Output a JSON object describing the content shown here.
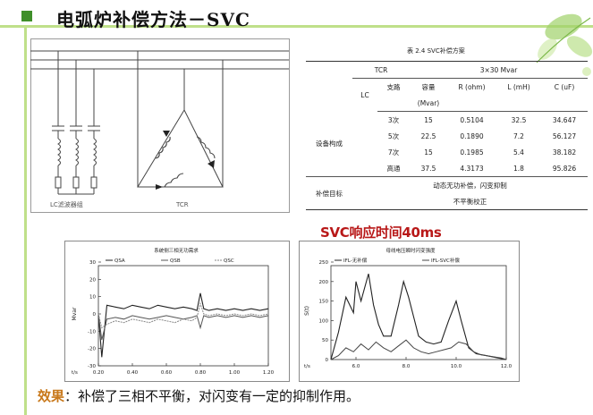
{
  "slide": {
    "title": "电弧炉补偿方法－SVC",
    "headline": "SVC响应时间40ms",
    "effect_label": "效果",
    "effect_text": "：补偿了三相不平衡，对闪变有一定的抑制作用。",
    "accent_color": "#bfe08a",
    "headline_color": "#b81818"
  },
  "diagram": {
    "lc_label": "LC滤波器组",
    "tcr_label": "TCR"
  },
  "table": {
    "caption": "表 2.4 SVC补偿方案",
    "tcr_label": "TCR",
    "tcr_value": "3×30 Mvar",
    "lc_label": "LC",
    "headers": [
      "支路",
      "容量",
      "R (ohm)",
      "L (mH)",
      "C (uF)"
    ],
    "capacity_unit": "(Mvar)",
    "group_label": "设备构成",
    "rows": [
      [
        "3次",
        "15",
        "0.5104",
        "32.5",
        "34.647"
      ],
      [
        "5次",
        "22.5",
        "0.1890",
        "7.2",
        "56.127"
      ],
      [
        "7次",
        "15",
        "0.1985",
        "5.4",
        "38.182"
      ],
      [
        "高通",
        "37.5",
        "4.3173",
        "1.8",
        "95.826"
      ]
    ],
    "target_label": "补偿目标",
    "targets": [
      "动态无功补偿，闪变抑制",
      "不平衡校正"
    ]
  },
  "chart_data": [
    {
      "type": "line",
      "title": "系统侧三相无功需求",
      "ylabel": "Mvar",
      "xlabel": "t/s",
      "xlim": [
        0.2,
        1.2
      ],
      "ylim": [
        -30,
        30
      ],
      "xticks": [
        "0.20",
        "0.40",
        "0.60",
        "0.80",
        "1.00",
        "1.20"
      ],
      "yticks": [
        "30",
        "20",
        "10",
        "0",
        "-10",
        "-20",
        "-30"
      ],
      "series": [
        {
          "name": "QSA",
          "x": [
            0.2,
            0.22,
            0.25,
            0.3,
            0.35,
            0.4,
            0.45,
            0.5,
            0.55,
            0.6,
            0.65,
            0.7,
            0.75,
            0.78,
            0.8,
            0.82,
            0.85,
            0.9,
            0.95,
            1.0,
            1.05,
            1.1,
            1.15,
            1.2
          ],
          "y": [
            0,
            -25,
            5,
            4,
            3,
            5,
            4,
            3,
            5,
            4,
            3,
            4,
            3,
            2,
            12,
            3,
            2,
            3,
            2,
            3,
            2,
            3,
            2,
            3
          ]
        },
        {
          "name": "QSB",
          "x": [
            0.2,
            0.22,
            0.25,
            0.3,
            0.35,
            0.4,
            0.45,
            0.5,
            0.55,
            0.6,
            0.65,
            0.7,
            0.75,
            0.78,
            0.8,
            0.82,
            0.85,
            0.9,
            0.95,
            1.0,
            1.05,
            1.1,
            1.15,
            1.2
          ],
          "y": [
            0,
            -15,
            -3,
            -2,
            -3,
            -1,
            -2,
            -3,
            -2,
            -1,
            -2,
            -3,
            -2,
            -1,
            -8,
            -1,
            -2,
            -1,
            -2,
            -1,
            -2,
            -1,
            -2,
            -1
          ]
        },
        {
          "name": "QSC",
          "x": [
            0.2,
            0.22,
            0.25,
            0.3,
            0.35,
            0.4,
            0.45,
            0.5,
            0.55,
            0.6,
            0.65,
            0.7,
            0.75,
            0.78,
            0.8,
            0.82,
            0.85,
            0.9,
            0.95,
            1.0,
            1.05,
            1.1,
            1.15,
            1.2
          ],
          "y": [
            0,
            -8,
            -6,
            -4,
            -5,
            -3,
            -4,
            -5,
            -3,
            -4,
            -5,
            -3,
            -4,
            -2,
            6,
            0,
            -1,
            0,
            -1,
            0,
            -1,
            0,
            -1,
            0
          ]
        }
      ]
    },
    {
      "type": "line",
      "title": "母线电压瞬时闪变强度",
      "ylabel": "S(t)",
      "xlabel": "t/s",
      "xlim": [
        5.0,
        12.0
      ],
      "ylim": [
        0,
        250
      ],
      "xticks": [
        "6.0",
        "8.0",
        "10.0",
        "12.0"
      ],
      "yticks": [
        "250",
        "200",
        "150",
        "100",
        "50",
        "0"
      ],
      "series": [
        {
          "name": "IFL-无补偿",
          "x": [
            5.0,
            5.3,
            5.6,
            5.9,
            6.0,
            6.2,
            6.5,
            6.7,
            6.9,
            7.1,
            7.4,
            7.7,
            7.9,
            8.1,
            8.3,
            8.5,
            8.8,
            9.1,
            9.4,
            9.7,
            10.0,
            10.2,
            10.5,
            10.8,
            11.2,
            11.6,
            12.0
          ],
          "y": [
            0,
            70,
            160,
            120,
            200,
            150,
            220,
            140,
            90,
            60,
            60,
            140,
            200,
            160,
            110,
            60,
            45,
            40,
            45,
            100,
            150,
            100,
            30,
            15,
            10,
            5,
            0
          ]
        },
        {
          "name": "IFL-SVC补偿",
          "x": [
            5.0,
            5.3,
            5.6,
            5.9,
            6.2,
            6.5,
            6.8,
            7.1,
            7.4,
            7.7,
            8.0,
            8.3,
            8.6,
            8.9,
            9.2,
            9.5,
            9.8,
            10.1,
            10.4,
            10.7,
            11.0,
            11.4,
            11.8,
            12.0
          ],
          "y": [
            0,
            10,
            30,
            20,
            40,
            25,
            45,
            30,
            20,
            35,
            50,
            30,
            20,
            15,
            20,
            25,
            30,
            45,
            40,
            20,
            12,
            8,
            4,
            0
          ]
        }
      ]
    }
  ]
}
